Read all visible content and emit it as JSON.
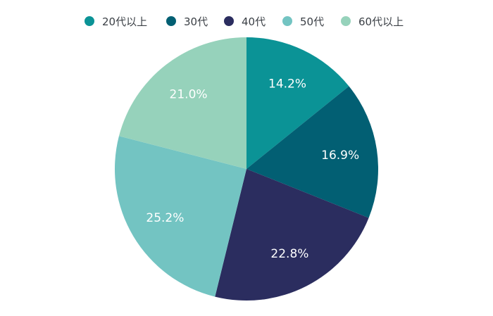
{
  "chart_data": {
    "type": "pie",
    "title": "",
    "categories": [
      "20代以上",
      "30代",
      "40代",
      "50代",
      "60代以上"
    ],
    "values": [
      14.2,
      16.9,
      22.8,
      25.2,
      21.0
    ],
    "labels": [
      "14.2%",
      "16.9%",
      "22.8%",
      "25.2%",
      "21.0%"
    ],
    "colors": [
      "#0b9396",
      "#025f73",
      "#2b2d5f",
      "#73c4c2",
      "#96d2bb"
    ],
    "legend_position": "top",
    "start_angle": "12 o'clock",
    "direction": "clockwise"
  }
}
